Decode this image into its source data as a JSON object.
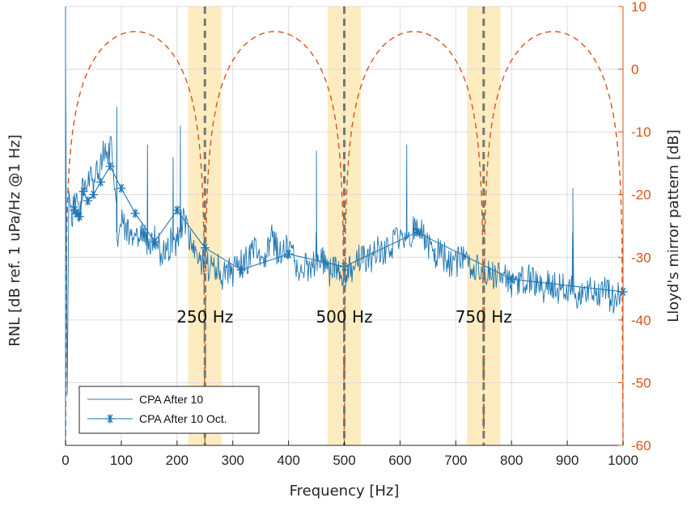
{
  "chart_data": {
    "type": "line",
    "xlabel": "Frequency [Hz]",
    "ylabel_left": "RNL [dB ref. 1 uPa/Hz @1 Hz]",
    "ylabel_right": "Lloyd's mirror pattern [dB]",
    "xlim": [
      0,
      1000
    ],
    "x_ticks": [
      "0",
      "100",
      "200",
      "300",
      "400",
      "500",
      "600",
      "700",
      "800",
      "900",
      "1000"
    ],
    "ylim_left": [
      -60,
      10
    ],
    "ylim_right": [
      -60,
      10
    ],
    "y_ticks_right": [
      "10",
      "0",
      "-10",
      "-20",
      "-30",
      "-40",
      "-50",
      "-60"
    ],
    "grid": true,
    "legend_position": "bottom-left",
    "colors": {
      "rnl": "#1f77b4",
      "lloyd": "#d95319",
      "band": "#fde9b4",
      "marker_line": "#777777"
    },
    "highlight_bands": [
      [
        220,
        280
      ],
      [
        470,
        530
      ],
      [
        720,
        780
      ]
    ],
    "reference_lines": [
      250,
      500,
      750
    ],
    "annotations": [
      "250 Hz",
      "500 Hz",
      "750 Hz"
    ],
    "series": [
      {
        "name": "CPA After 10",
        "style": "thin-line",
        "x": [
          0,
          3,
          6,
          10,
          15,
          20,
          25,
          30,
          35,
          40,
          45,
          50,
          55,
          60,
          65,
          70,
          75,
          80,
          85,
          90,
          95,
          100,
          110,
          120,
          130,
          140,
          150,
          160,
          170,
          180,
          190,
          200,
          210,
          220,
          230,
          240,
          250,
          260,
          270,
          280,
          290,
          300,
          310,
          320,
          330,
          340,
          350,
          360,
          370,
          380,
          390,
          400,
          410,
          420,
          430,
          440,
          450,
          460,
          470,
          480,
          490,
          500,
          510,
          520,
          530,
          540,
          550,
          560,
          570,
          580,
          590,
          600,
          610,
          620,
          630,
          640,
          650,
          660,
          670,
          680,
          690,
          700,
          710,
          720,
          730,
          740,
          750,
          760,
          770,
          780,
          790,
          800,
          810,
          820,
          830,
          840,
          850,
          860,
          870,
          880,
          890,
          900,
          910,
          920,
          930,
          940,
          950,
          960,
          970,
          980,
          990,
          1000
        ],
        "y": [
          2,
          -52,
          -20,
          -24,
          -22,
          -21,
          -23,
          -20,
          -18,
          -19,
          -17,
          -19,
          -17,
          -16,
          -14,
          -13,
          -14,
          -12,
          -15,
          -22,
          -28,
          -24,
          -26,
          -27,
          -28,
          -25,
          -29,
          -27,
          -29,
          -30,
          -27,
          -28,
          -24,
          -26,
          -29,
          -30,
          -31,
          -32,
          -31,
          -33,
          -32,
          -33,
          -31,
          -31,
          -30,
          -29,
          -31,
          -29,
          -27,
          -29,
          -29,
          -28,
          -30,
          -32,
          -31,
          -32,
          -31,
          -30,
          -33,
          -31,
          -32,
          -33,
          -32,
          -31,
          -30,
          -31,
          -30,
          -29,
          -29,
          -28,
          -28,
          -27,
          -26,
          -26,
          -25,
          -26,
          -28,
          -30,
          -29,
          -30,
          -31,
          -31,
          -30,
          -31,
          -31,
          -32,
          -33,
          -32,
          -33,
          -32,
          -33,
          -34,
          -34,
          -34,
          -33,
          -34,
          -35,
          -35,
          -34,
          -35,
          -35,
          -35,
          -35,
          -36,
          -35,
          -35,
          -36,
          -36,
          -35,
          -37,
          -36,
          -35
        ]
      },
      {
        "name": "CPA After 10 Oct.",
        "style": "line-with-asterisk-markers",
        "x": [
          16,
          20,
          25,
          32,
          40,
          50,
          63,
          80,
          100,
          125,
          160,
          200,
          250,
          315,
          400,
          500,
          630,
          800,
          1000
        ],
        "y": [
          -22.5,
          -23.0,
          -23.5,
          -19.5,
          -21.0,
          -20.0,
          -18.0,
          -15.5,
          -19.0,
          -23.0,
          -27.5,
          -22.5,
          -28.5,
          -32.0,
          -29.5,
          -31.5,
          -26.0,
          -33.5,
          -35.5
        ]
      },
      {
        "name": "Lloyd's mirror pattern",
        "style": "dashed",
        "axis": "right",
        "period_hz": 250,
        "max_db": 6,
        "floor_db": -60
      }
    ],
    "spikes": [
      {
        "x": 92,
        "y": -6
      },
      {
        "x": 147,
        "y": -12
      },
      {
        "x": 193,
        "y": -14
      },
      {
        "x": 206,
        "y": -9
      },
      {
        "x": 450,
        "y": -13
      },
      {
        "x": 612,
        "y": -12
      },
      {
        "x": 910,
        "y": -19
      }
    ]
  }
}
